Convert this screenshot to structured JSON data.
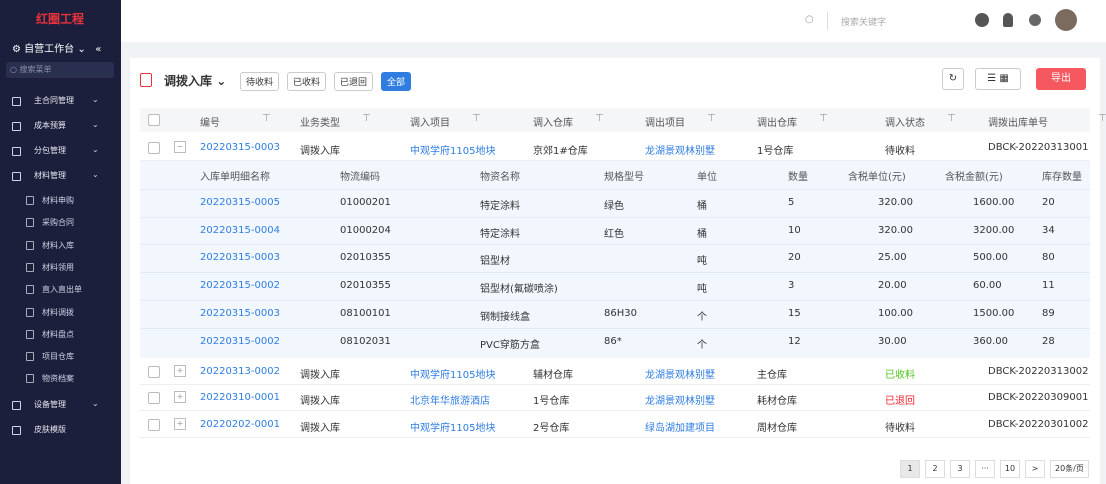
{
  "sidebar": {
    "logo": "红圈工程",
    "workspace": "自营工作台",
    "search_placeholder": "搜索菜单",
    "menu": [
      {
        "label": "主合同管理"
      },
      {
        "label": "成本预算"
      },
      {
        "label": "分包管理"
      },
      {
        "label": "材料管理",
        "children": [
          "材料申购",
          "采购合同",
          "材料入库",
          "材料领用",
          "直入直出单",
          "材料调拨",
          "材料盘点",
          "项目仓库",
          "物资档案"
        ]
      },
      {
        "label": "设备管理"
      },
      {
        "label": "皮肤模版"
      }
    ]
  },
  "header": {
    "search_placeholder": "搜索关键字"
  },
  "toolbar": {
    "title": "调拨入库",
    "tabs": [
      "待收料",
      "已收料",
      "已退回",
      "全部"
    ],
    "export_button": "导出"
  },
  "table": {
    "columns": [
      "编号",
      "业务类型",
      "调入项目",
      "调入仓库",
      "调出项目",
      "调出仓库",
      "调入状态",
      "调拨出库单号"
    ],
    "rows": [
      [
        "20220315-0003",
        "调拨入库",
        "中观学府1105地块",
        "京郊1#仓库",
        "龙湖景观林别墅",
        "1号仓库",
        "待收料",
        "DBCK-20220313001"
      ],
      [
        "20220313-0002",
        "调拨入库",
        "中观学府1105地块",
        "辅材仓库",
        "龙湖景观林别墅",
        "主仓库",
        "已收料",
        "DBCK-20220313002"
      ],
      [
        "20220310-0001",
        "调拨入库",
        "北京年华旅游酒店",
        "1号仓库",
        "龙湖景观林别墅",
        "耗材仓库",
        "已退回",
        "DBCK-20220309001"
      ],
      [
        "20220202-0001",
        "调拨入库",
        "中观学府1105地块",
        "2号仓库",
        "绿岛湖加建项目",
        "周材仓库",
        "待收料",
        "DBCK-20220301002"
      ]
    ]
  },
  "details": {
    "columns": [
      "入库单明细名称",
      "物流编码",
      "物资名称",
      "规格型号",
      "单位",
      "数量",
      "含税单位(元)",
      "含税金额(元)",
      "库存数量"
    ],
    "rows": [
      [
        "20220315-0005",
        "01000201",
        "特定涂料",
        "绿色",
        "桶",
        "5",
        "320.00",
        "1600.00",
        "20"
      ],
      [
        "20220315-0004",
        "01000204",
        "特定涂料",
        "红色",
        "桶",
        "10",
        "320.00",
        "3200.00",
        "34"
      ],
      [
        "20220315-0003",
        "02010355",
        "铝型材",
        null,
        "吨",
        "20",
        "25.00",
        "500.00",
        "80"
      ],
      [
        "20220315-0002",
        "02010355",
        "铝型材(氟碳喷涂)",
        null,
        "吨",
        "3",
        "20.00",
        "60.00",
        "11"
      ],
      [
        "20220315-0003",
        "08100101",
        "钢制接线盒",
        "86H30",
        "个",
        "15",
        "100.00",
        "1500.00",
        "89"
      ],
      [
        "20220315-0002",
        "08102031",
        "PVC穿筋方盒",
        "86*",
        "个",
        "12",
        "30.00",
        "360.00",
        "28"
      ]
    ]
  },
  "pagination": {
    "pages": [
      "1",
      "2",
      "3",
      "···",
      "10"
    ],
    "page_size": "20条/页"
  }
}
